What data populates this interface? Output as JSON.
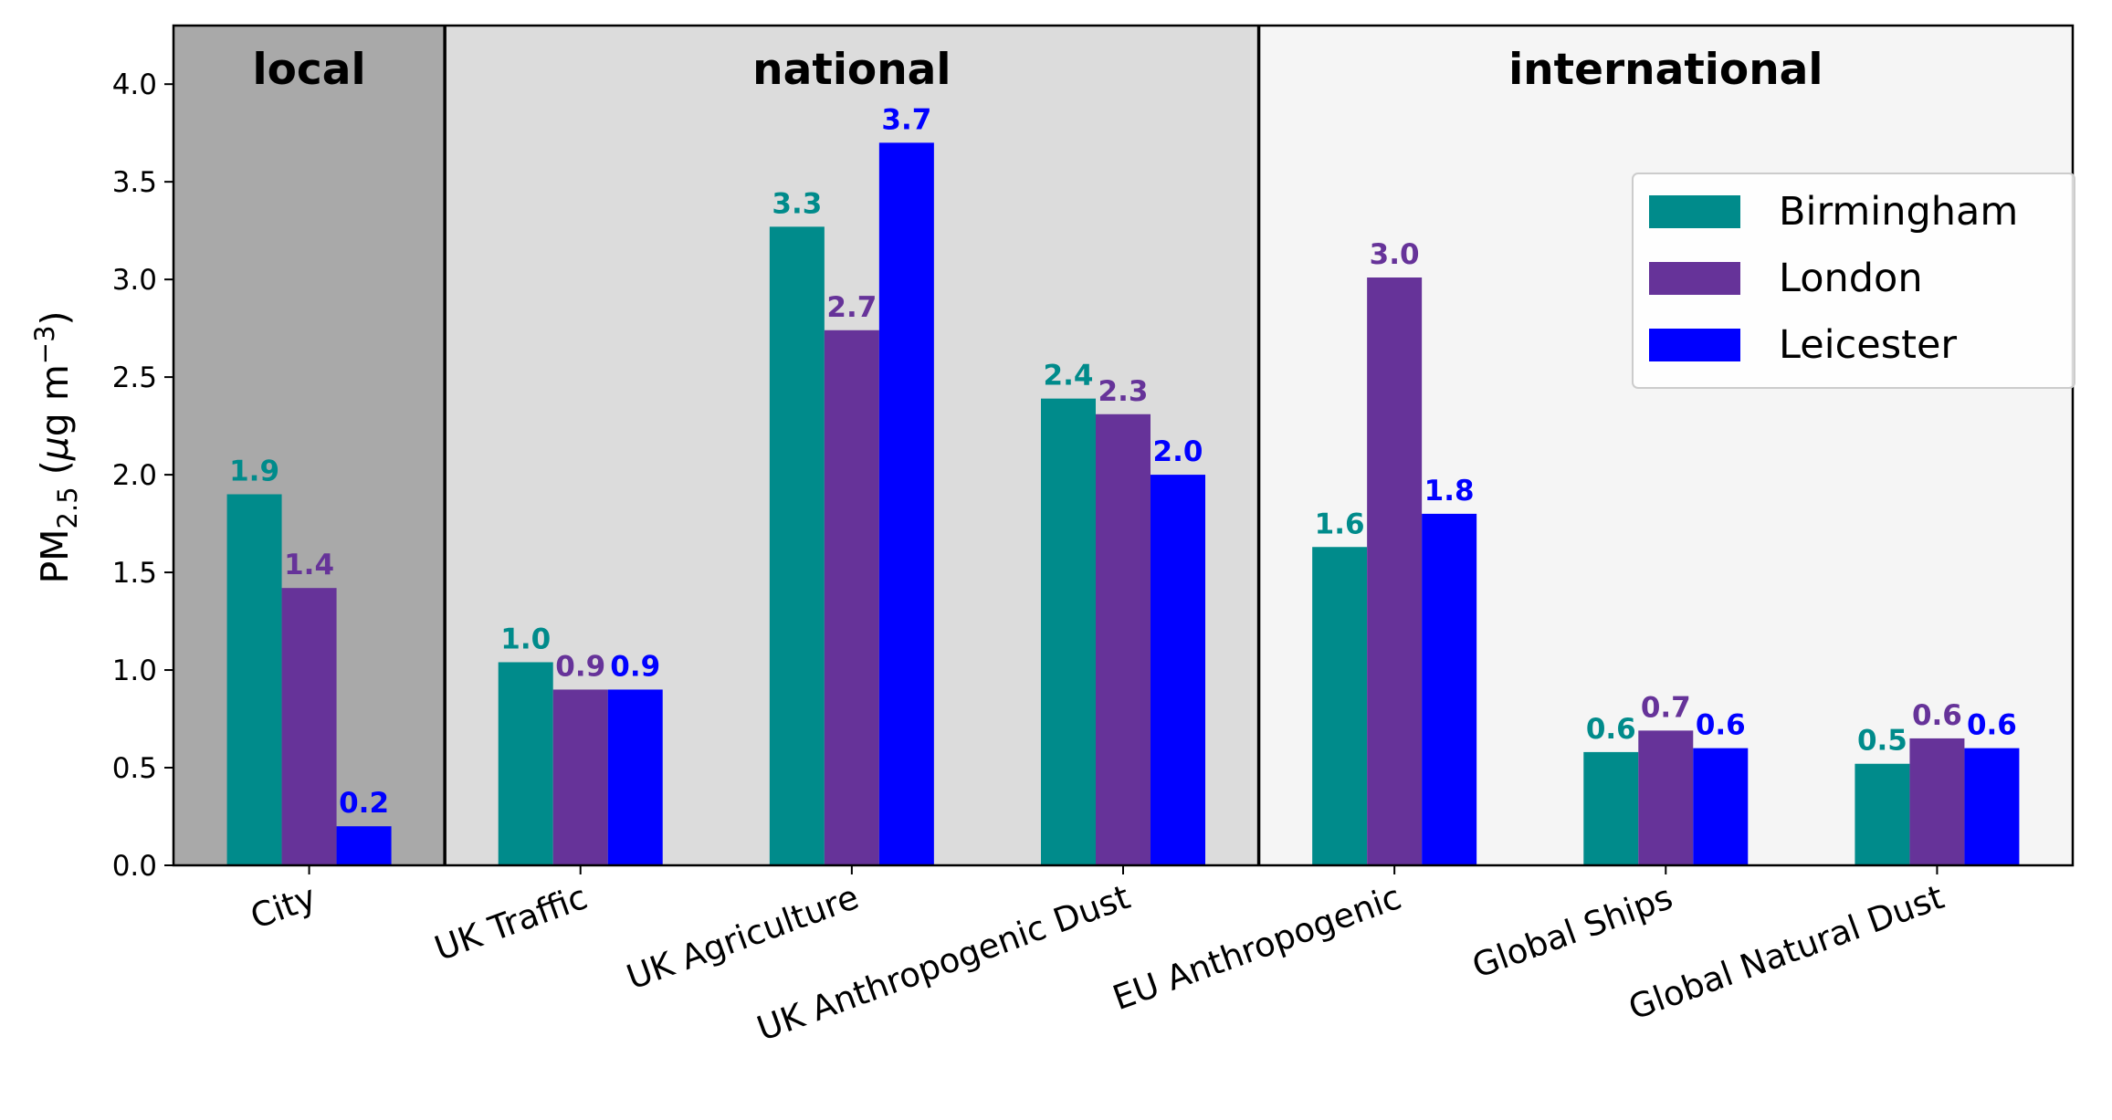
{
  "chart_data": {
    "type": "bar",
    "ylabel": "PM",
    "ylabel_sub": "2.5",
    "ylabel_unit_pre": " (",
    "ylabel_mu": "μ",
    "ylabel_unit_mid": "g m",
    "ylabel_sup": "−3",
    "ylabel_unit_post": ")",
    "ylim": [
      0,
      4.3
    ],
    "yticks": [
      "0.0",
      "0.5",
      "1.0",
      "1.5",
      "2.0",
      "2.5",
      "3.0",
      "3.5",
      "4.0"
    ],
    "categories": [
      "City",
      "UK Traffic",
      "UK Agriculture",
      "UK Anthropogenic Dust",
      "EU Anthropogenic",
      "Global Ships",
      "Global Natural Dust"
    ],
    "regions": [
      {
        "label": "local",
        "from": 0,
        "to": 1,
        "color": "#a9a9a9"
      },
      {
        "label": "national",
        "from": 1,
        "to": 4,
        "color": "#dcdcdc"
      },
      {
        "label": "international",
        "from": 4,
        "to": 7,
        "color": "#f5f5f5"
      }
    ],
    "series": [
      {
        "name": "Birmingham",
        "color": "#008b8b",
        "values": [
          1.9,
          1.04,
          3.27,
          2.39,
          1.63,
          0.58,
          0.52
        ],
        "labels": [
          "1.9",
          "1.0",
          "3.3",
          "2.4",
          "1.6",
          "0.6",
          "0.5"
        ]
      },
      {
        "name": "London",
        "color": "#663399",
        "values": [
          1.42,
          0.9,
          2.74,
          2.31,
          3.01,
          0.69,
          0.65
        ],
        "labels": [
          "1.4",
          "0.9",
          "2.7",
          "2.3",
          "3.0",
          "0.7",
          "0.6"
        ]
      },
      {
        "name": "Leicester",
        "color": "#0000ff",
        "values": [
          0.2,
          0.9,
          3.7,
          2.0,
          1.8,
          0.6,
          0.6
        ],
        "labels": [
          "0.2",
          "0.9",
          "3.7",
          "2.0",
          "1.8",
          "0.6",
          "0.6"
        ]
      }
    ],
    "legend_position": "upper-right",
    "grid": false
  }
}
